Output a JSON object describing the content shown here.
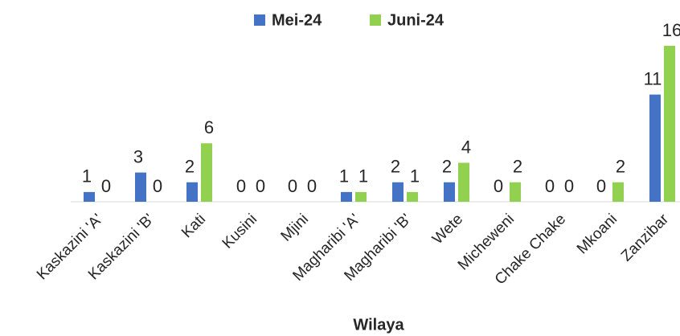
{
  "chart_data": {
    "type": "bar",
    "x_label": "Wilaya",
    "categories": [
      "Kaskazini 'A'",
      "Kaskazini 'B'",
      "Kati",
      "Kusini",
      "Mjini",
      "Magharibi 'A'",
      "Magharibi 'B'",
      "Wete",
      "Micheweni",
      "Chake Chake",
      "Mkoani",
      "Zanzibar"
    ],
    "series": [
      {
        "name": "Mei-24",
        "color": "#4472c4",
        "values": [
          1,
          3,
          2,
          0,
          0,
          1,
          2,
          2,
          0,
          0,
          0,
          11
        ]
      },
      {
        "name": "Juni-24",
        "color": "#92d050",
        "values": [
          0,
          0,
          6,
          0,
          0,
          1,
          1,
          4,
          2,
          0,
          2,
          16
        ]
      }
    ],
    "ylim": [
      0,
      16
    ],
    "legend": "top"
  }
}
